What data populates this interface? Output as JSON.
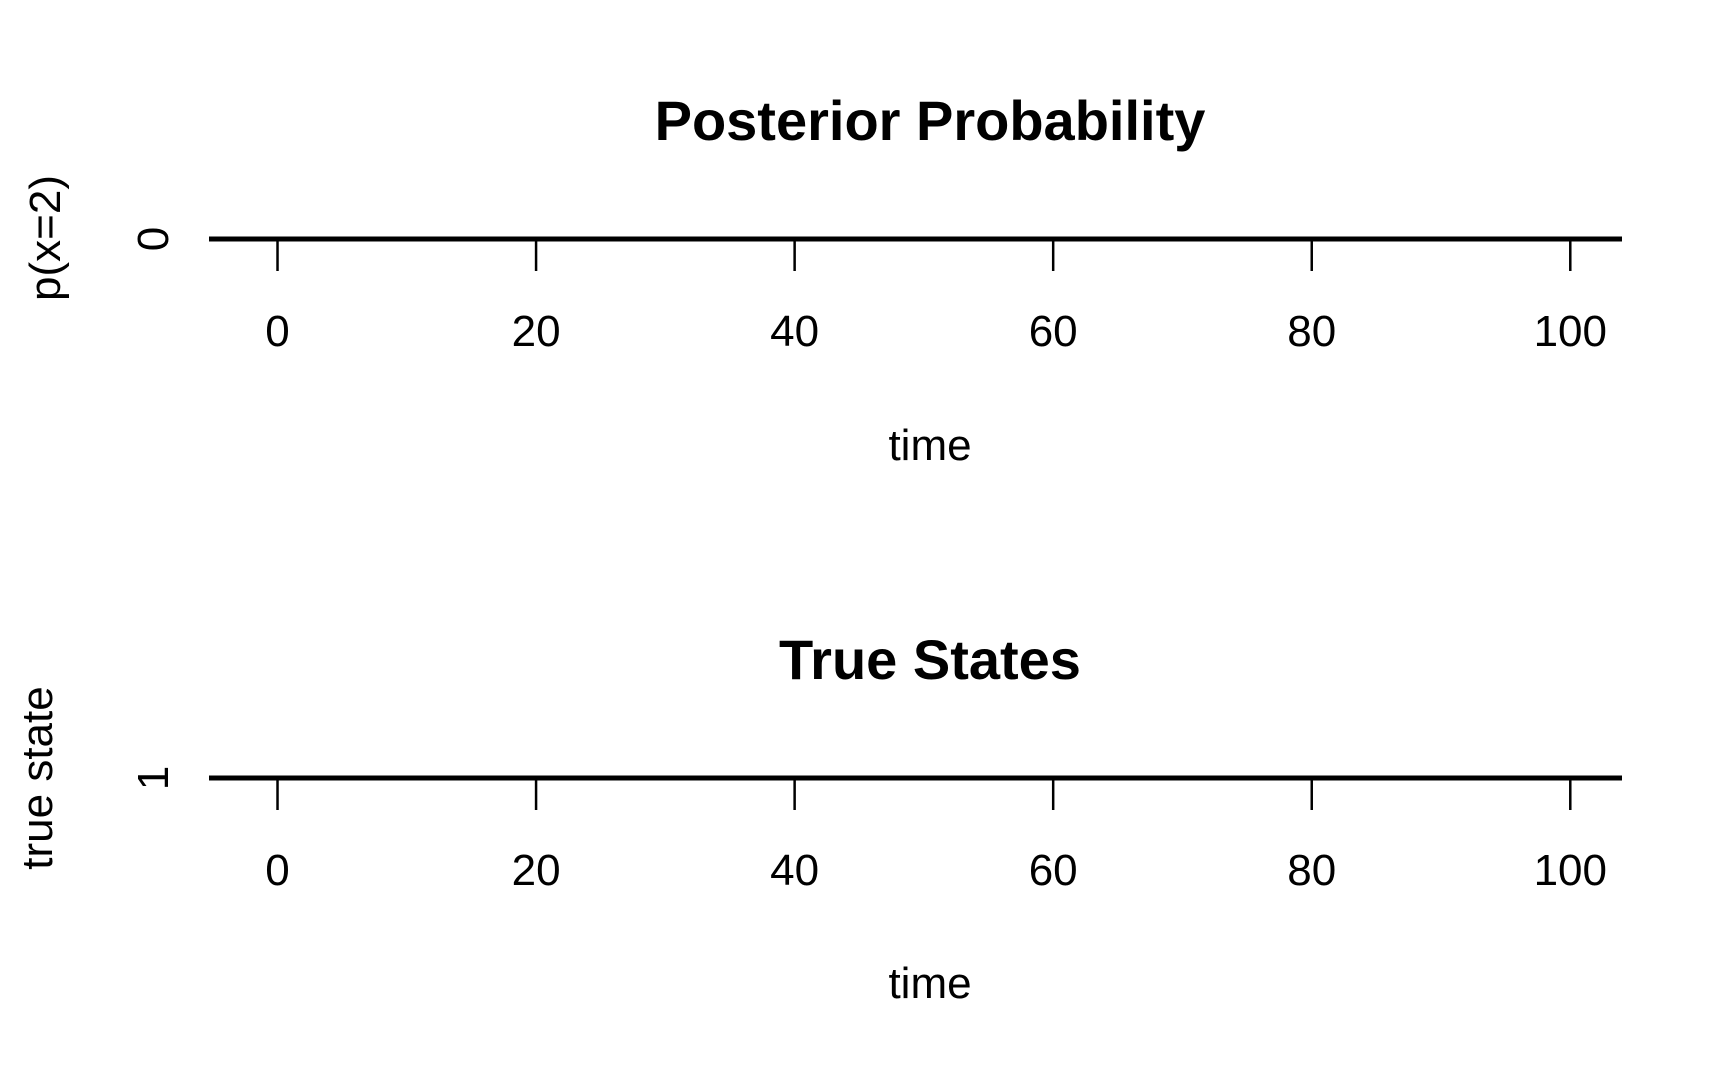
{
  "chart_data": [
    {
      "type": "line",
      "title": "Posterior Probability",
      "xlabel": "time",
      "ylabel": "p(x=2)",
      "xlim": [
        -5.3,
        104
      ],
      "x_ticks": [
        0,
        20,
        40,
        60,
        80,
        100
      ],
      "x_tick_labels": [
        "0",
        "20",
        "40",
        "60",
        "80",
        "100"
      ],
      "y_ticks": [
        0
      ],
      "y_tick_labels": [
        "0"
      ],
      "series": [
        {
          "x": [
            1,
            100
          ],
          "values": [
            0,
            0
          ],
          "color": "#000000"
        }
      ],
      "grid": false,
      "legend": "none"
    },
    {
      "type": "line",
      "title": "True States",
      "xlabel": "time",
      "ylabel": "true state",
      "xlim": [
        -5.3,
        104
      ],
      "x_ticks": [
        0,
        20,
        40,
        60,
        80,
        100
      ],
      "x_tick_labels": [
        "0",
        "20",
        "40",
        "60",
        "80",
        "100"
      ],
      "y_ticks": [
        1
      ],
      "y_tick_labels": [
        "1"
      ],
      "series": [
        {
          "x": [
            1,
            100
          ],
          "values": [
            1,
            1
          ],
          "color": "#000000"
        }
      ],
      "grid": false,
      "legend": "none"
    }
  ]
}
